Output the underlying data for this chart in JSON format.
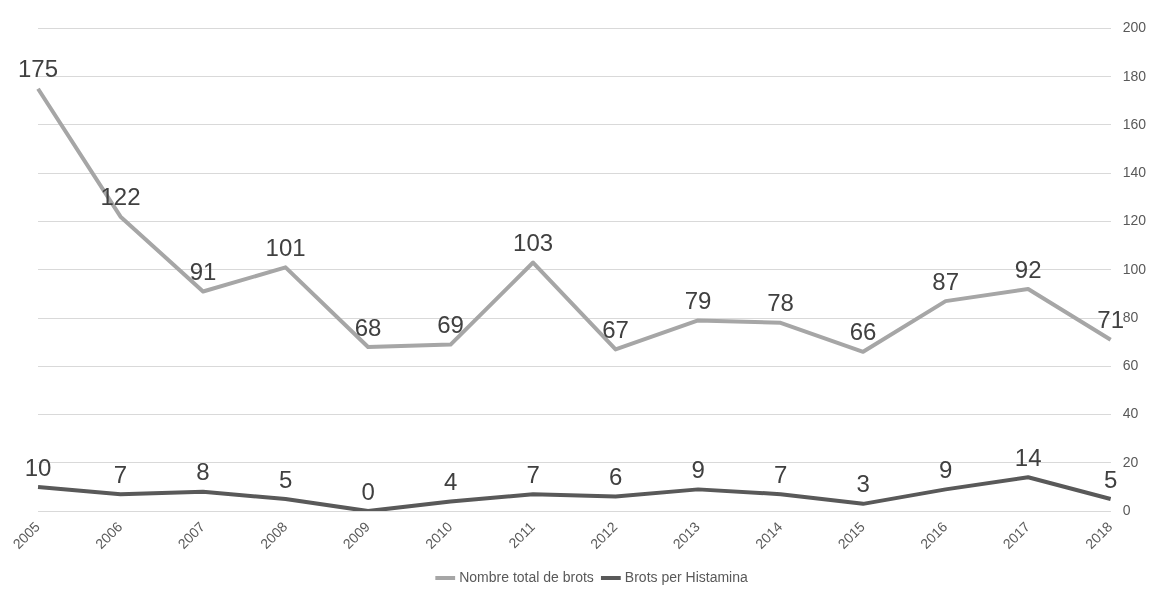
{
  "chart_data": {
    "type": "line",
    "categories": [
      "2005",
      "2006",
      "2007",
      "2008",
      "2009",
      "2010",
      "2011",
      "2012",
      "2013",
      "2014",
      "2015",
      "2016",
      "2017",
      "2018"
    ],
    "series": [
      {
        "name": "Nombre total de brots",
        "color": "#a6a6a6",
        "values": [
          175,
          122,
          91,
          101,
          68,
          69,
          103,
          67,
          79,
          78,
          66,
          87,
          92,
          71
        ]
      },
      {
        "name": "Brots per Histamina",
        "color": "#595959",
        "values": [
          10,
          7,
          8,
          5,
          0,
          4,
          7,
          6,
          9,
          7,
          3,
          9,
          14,
          5
        ]
      }
    ],
    "ylim": [
      0,
      200
    ],
    "yticks": [
      0,
      20,
      40,
      60,
      80,
      100,
      120,
      140,
      160,
      180,
      200
    ],
    "grid": "y",
    "legend": "bottom",
    "data_labels": true,
    "marker": "none",
    "line_style": "solid"
  }
}
